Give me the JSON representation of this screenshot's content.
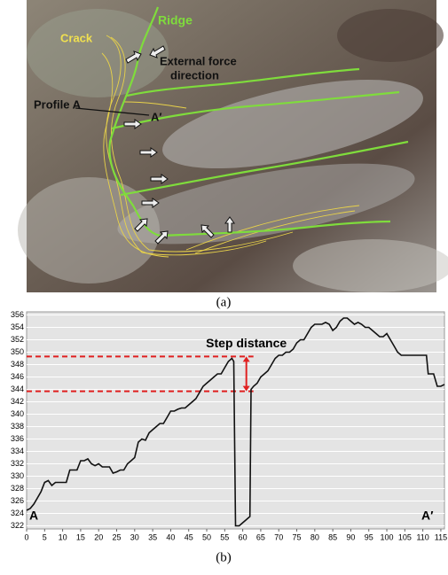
{
  "figure_a": {
    "labels": {
      "crack": "Crack",
      "ridge": "Ridge",
      "force_1": "External force",
      "force_2": "direction",
      "profile": "Profile A",
      "a_prime": "A′"
    },
    "caption": "(a)"
  },
  "chart_data": {
    "type": "line",
    "caption": "(b)",
    "x": [
      0,
      1,
      2,
      3,
      4,
      5,
      6,
      7,
      8,
      9,
      10,
      11,
      12,
      13,
      14,
      15,
      16,
      17,
      18,
      19,
      20,
      21,
      22,
      23,
      24,
      25,
      26,
      27,
      28,
      29,
      30,
      31,
      32,
      33,
      34,
      35,
      36,
      37,
      38,
      39,
      40,
      41,
      42,
      43,
      44,
      45,
      46,
      47,
      48,
      49,
      50,
      51,
      52,
      53,
      54,
      55,
      56,
      57,
      57.5,
      58,
      59,
      60,
      61,
      62,
      62.3,
      63,
      64,
      65,
      66,
      67,
      68,
      69,
      70,
      71,
      72,
      73,
      74,
      75,
      76,
      77,
      78,
      79,
      80,
      81,
      82,
      83,
      84,
      85,
      86,
      87,
      88,
      89,
      90,
      91,
      92,
      93,
      94,
      95,
      96,
      97,
      98,
      99,
      100,
      101,
      102,
      103,
      104,
      105,
      106,
      107,
      108,
      109,
      110,
      111,
      111.5,
      112,
      113,
      114,
      115,
      116
    ],
    "values": [
      324.5,
      324.8,
      325.5,
      326.5,
      327.5,
      329,
      329.3,
      328.5,
      329,
      329,
      329,
      329,
      331,
      331,
      331,
      332.5,
      332.5,
      332.8,
      332,
      331.7,
      332,
      331.5,
      331.5,
      331.5,
      330.5,
      330.7,
      331,
      331,
      332,
      332.5,
      333,
      335.5,
      336,
      335.8,
      337,
      337.5,
      338,
      338.5,
      338.5,
      339.5,
      340.5,
      340.5,
      340.8,
      341,
      341,
      341.5,
      342,
      342.5,
      343.5,
      344.5,
      345,
      345.5,
      346,
      346.5,
      346.5,
      347.5,
      348.5,
      349,
      348.5,
      322,
      322,
      322.5,
      323,
      323.5,
      344,
      344.5,
      345,
      346,
      346.5,
      347,
      348,
      349,
      349.5,
      349.5,
      350,
      350,
      350.5,
      351.5,
      352,
      352,
      353,
      354,
      354.5,
      354.5,
      354.5,
      354.8,
      354.5,
      353.5,
      354,
      355,
      355.5,
      355.5,
      355,
      354.5,
      354.8,
      354.5,
      354,
      354,
      353.5,
      353,
      352.5,
      352.5,
      353,
      352,
      351,
      350,
      349.5,
      349.5,
      349.5,
      349.5,
      349.5,
      349.5,
      349.5,
      349.5,
      346.5,
      346.5,
      346.5,
      344.5,
      344.5,
      344.8
    ],
    "color": "#111111",
    "xlim": [
      0,
      116
    ],
    "ylim": [
      321.5,
      356.5
    ],
    "xticks": [
      0,
      5,
      10,
      15,
      20,
      25,
      30,
      35,
      40,
      45,
      50,
      55,
      60,
      65,
      70,
      75,
      80,
      85,
      90,
      95,
      100,
      105,
      110,
      115
    ],
    "yticks": [
      322,
      324,
      326,
      328,
      330,
      332,
      334,
      336,
      338,
      340,
      342,
      344,
      346,
      348,
      350,
      352,
      354,
      356
    ],
    "grid": true,
    "start_label": "A",
    "end_label": "A′",
    "annotation": {
      "text": "Step distance",
      "x": 61,
      "top": 349.3,
      "bottom": 343.7,
      "color": "#e02020"
    }
  }
}
